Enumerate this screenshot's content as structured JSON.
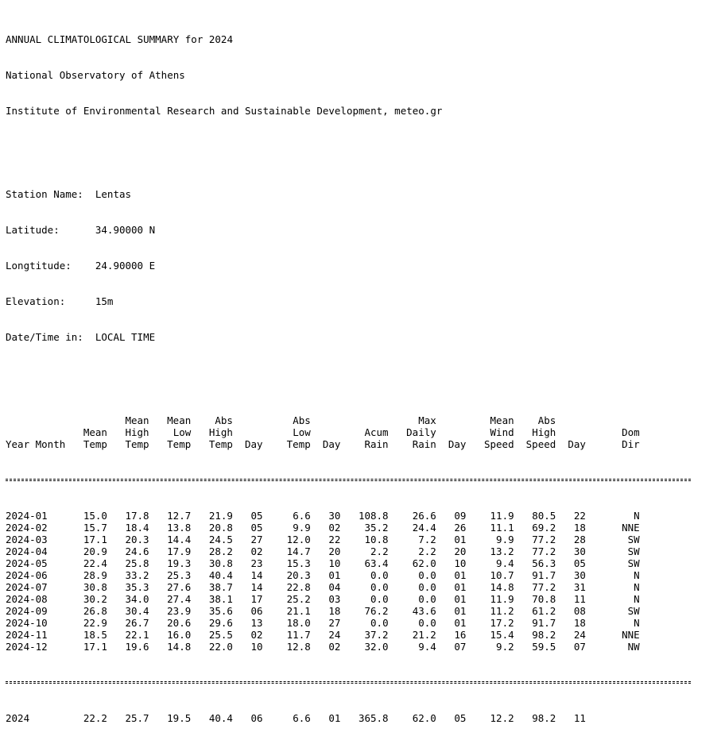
{
  "header": {
    "line1": "ANNUAL CLIMATOLOGICAL SUMMARY for 2024",
    "line2": "National Observatory of Athens",
    "line3": "Institute of Environmental Research and Sustainable Development, meteo.gr"
  },
  "station": {
    "name_label": "Station Name:",
    "name_value": "Lentas",
    "lat_label": "Latitude:",
    "lat_value": "34.90000 N",
    "lon_label": "Longtitude:",
    "lon_value": "24.90000 E",
    "elev_label": "Elevation:",
    "elev_value": "15m",
    "time_label": "Date/Time in:",
    "time_value": "LOCAL TIME"
  },
  "columns": {
    "row1": [
      "",
      "",
      "Mean",
      "Mean",
      "Abs",
      "",
      "Abs",
      "",
      "",
      "Max",
      "",
      "Mean",
      "Abs",
      "",
      ""
    ],
    "row2": [
      "",
      "Mean",
      "High",
      "Low",
      "High",
      "",
      "Low",
      "",
      "Acum",
      "Daily",
      "",
      "Wind",
      "High",
      "",
      "Dom"
    ],
    "row3": [
      "Year Month",
      "Temp",
      "Temp",
      "Temp",
      "Temp",
      "Day",
      "Temp",
      "Day",
      "Rain",
      "Rain",
      "Day",
      "Speed",
      "Speed",
      "Day",
      "Dir"
    ]
  },
  "rows": [
    [
      "2024-01",
      "15.0",
      "17.8",
      "12.7",
      "21.9",
      "05",
      "6.6",
      "30",
      "108.8",
      "26.6",
      "09",
      "11.9",
      "80.5",
      "22",
      "N"
    ],
    [
      "2024-02",
      "15.7",
      "18.4",
      "13.8",
      "20.8",
      "05",
      "9.9",
      "02",
      "35.2",
      "24.4",
      "26",
      "11.1",
      "69.2",
      "18",
      "NNE"
    ],
    [
      "2024-03",
      "17.1",
      "20.3",
      "14.4",
      "24.5",
      "27",
      "12.0",
      "22",
      "10.8",
      "7.2",
      "01",
      "9.9",
      "77.2",
      "28",
      "SW"
    ],
    [
      "2024-04",
      "20.9",
      "24.6",
      "17.9",
      "28.2",
      "02",
      "14.7",
      "20",
      "2.2",
      "2.2",
      "20",
      "13.2",
      "77.2",
      "30",
      "SW"
    ],
    [
      "2024-05",
      "22.4",
      "25.8",
      "19.3",
      "30.8",
      "23",
      "15.3",
      "10",
      "63.4",
      "62.0",
      "10",
      "9.4",
      "56.3",
      "05",
      "SW"
    ],
    [
      "2024-06",
      "28.9",
      "33.2",
      "25.3",
      "40.4",
      "14",
      "20.3",
      "01",
      "0.0",
      "0.0",
      "01",
      "10.7",
      "91.7",
      "30",
      "N"
    ],
    [
      "2024-07",
      "30.8",
      "35.3",
      "27.6",
      "38.7",
      "14",
      "22.8",
      "04",
      "0.0",
      "0.0",
      "01",
      "14.8",
      "77.2",
      "31",
      "N"
    ],
    [
      "2024-08",
      "30.2",
      "34.0",
      "27.4",
      "38.1",
      "17",
      "25.2",
      "03",
      "0.0",
      "0.0",
      "01",
      "11.9",
      "70.8",
      "11",
      "N"
    ],
    [
      "2024-09",
      "26.8",
      "30.4",
      "23.9",
      "35.6",
      "06",
      "21.1",
      "18",
      "76.2",
      "43.6",
      "01",
      "11.2",
      "61.2",
      "08",
      "SW"
    ],
    [
      "2024-10",
      "22.9",
      "26.7",
      "20.6",
      "29.6",
      "13",
      "18.0",
      "27",
      "0.0",
      "0.0",
      "01",
      "17.2",
      "91.7",
      "18",
      "N"
    ],
    [
      "2024-11",
      "18.5",
      "22.1",
      "16.0",
      "25.5",
      "02",
      "11.7",
      "24",
      "37.2",
      "21.2",
      "16",
      "15.4",
      "98.2",
      "24",
      "NNE"
    ],
    [
      "2024-12",
      "17.1",
      "19.6",
      "14.8",
      "22.0",
      "10",
      "12.8",
      "02",
      "32.0",
      "9.4",
      "07",
      "9.2",
      "59.5",
      "07",
      "NW"
    ]
  ],
  "total": [
    "2024",
    "22.2",
    "25.7",
    "19.5",
    "40.4",
    "06",
    "6.6",
    "01",
    "365.8",
    "62.0",
    "05",
    "12.2",
    "98.2",
    "11",
    ""
  ]
}
